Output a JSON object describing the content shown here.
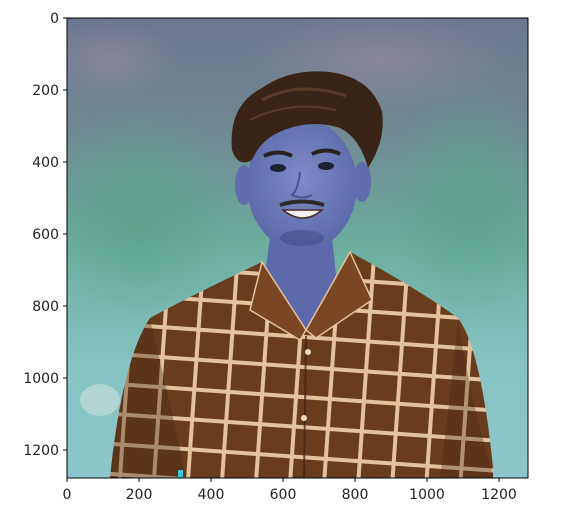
{
  "figure": {
    "image_description": "portrait photo of a smiling young man with styled dark hair wearing a brown shirt with a cream grid-check pattern, blurred green-teal outdoor background, colors shown with swapped red/blue channels",
    "extent": {
      "xmin": 0,
      "xmax": 1280,
      "ymin": 0,
      "ymax": 1280
    },
    "x_ticks": [
      "0",
      "200",
      "400",
      "600",
      "800",
      "1000",
      "1200"
    ],
    "y_ticks": [
      "0",
      "200",
      "400",
      "600",
      "800",
      "1000",
      "1200"
    ],
    "colors": {
      "background_top": "#6f7a90",
      "background_mid": "#6fae9c",
      "background_low": "#8cc4c8",
      "skin": "#6a78b8",
      "hair": "#3a2418",
      "shirt": "#6a3c1e",
      "shirt_stripe": "#e8c9a6",
      "axis": "#000000"
    }
  }
}
